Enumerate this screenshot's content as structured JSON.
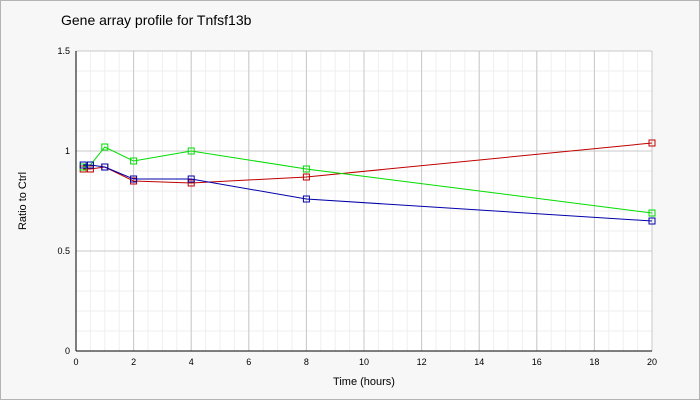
{
  "chart_data": {
    "type": "line",
    "title": "Gene array profile for Tnfsf13b",
    "xlabel": "Time (hours)",
    "ylabel": "Ratio to Ctrl",
    "xlim": [
      0,
      20
    ],
    "ylim": [
      0,
      1.5
    ],
    "xticks": [
      0,
      2,
      4,
      6,
      8,
      10,
      12,
      14,
      16,
      18,
      20
    ],
    "yticks": [
      0,
      0.5,
      1,
      1.5
    ],
    "ytick_labels": [
      "0",
      "0.5",
      "1",
      "1.5"
    ],
    "grid": true,
    "legend": "none",
    "series": [
      {
        "color": "#c00000",
        "x": [
          0.25,
          0.5,
          1,
          2,
          4,
          8,
          20
        ],
        "y": [
          0.91,
          0.91,
          0.92,
          0.85,
          0.84,
          0.87,
          1.04
        ]
      },
      {
        "color": "#00dd00",
        "x": [
          0.25,
          0.5,
          1,
          2,
          4,
          8,
          20
        ],
        "y": [
          0.92,
          0.93,
          1.02,
          0.95,
          1.0,
          0.91,
          0.69
        ]
      },
      {
        "color": "#0000aa",
        "x": [
          0.25,
          0.5,
          1,
          2,
          4,
          8,
          20
        ],
        "y": [
          0.93,
          0.93,
          0.92,
          0.86,
          0.86,
          0.76,
          0.65
        ]
      }
    ]
  }
}
